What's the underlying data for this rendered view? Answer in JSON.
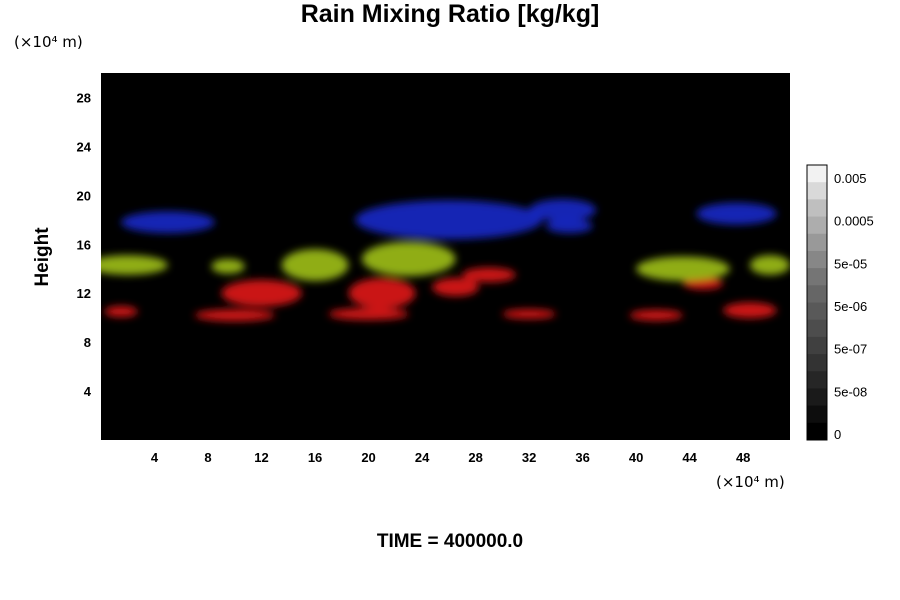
{
  "chart_data": {
    "type": "heatmap",
    "title": "Rain Mixing Ratio [kg/kg]",
    "ylabel": "Height",
    "xlabel": "",
    "x_unit": "(×10⁴ m)",
    "y_unit": "(×10⁴ m)",
    "xlim": [
      0,
      51.5
    ],
    "ylim": [
      0,
      30
    ],
    "x_ticks": [
      4,
      8,
      12,
      16,
      20,
      24,
      28,
      32,
      36,
      40,
      44,
      48
    ],
    "y_ticks": [
      4,
      8,
      12,
      16,
      20,
      24,
      28
    ],
    "grid": false,
    "background_color": "#000000",
    "layers": [
      {
        "color": "#e01818",
        "patches": [
          {
            "x": 1.5,
            "y": 10.5,
            "w": 2.5,
            "h": 0.9
          },
          {
            "x": 10.0,
            "y": 10.2,
            "w": 6.0,
            "h": 1.0
          },
          {
            "x": 20.0,
            "y": 10.3,
            "w": 6.0,
            "h": 1.0
          },
          {
            "x": 32.0,
            "y": 10.3,
            "w": 4.0,
            "h": 0.8
          },
          {
            "x": 41.5,
            "y": 10.2,
            "w": 4.0,
            "h": 0.9
          },
          {
            "x": 48.5,
            "y": 10.6,
            "w": 4.0,
            "h": 1.3
          },
          {
            "x": 12.0,
            "y": 12.0,
            "w": 6.0,
            "h": 2.2
          },
          {
            "x": 21.0,
            "y": 12.0,
            "w": 5.0,
            "h": 2.5
          },
          {
            "x": 26.5,
            "y": 12.5,
            "w": 3.5,
            "h": 1.5
          },
          {
            "x": 45.0,
            "y": 12.8,
            "w": 3.0,
            "h": 1.0
          },
          {
            "x": 29.0,
            "y": 13.5,
            "w": 4.0,
            "h": 1.2
          }
        ]
      },
      {
        "color": "#a0c018",
        "patches": [
          {
            "x": 2.0,
            "y": 14.3,
            "w": 6.0,
            "h": 1.6
          },
          {
            "x": 9.5,
            "y": 14.2,
            "w": 2.5,
            "h": 1.2
          },
          {
            "x": 16.0,
            "y": 14.3,
            "w": 5.0,
            "h": 2.6
          },
          {
            "x": 23.0,
            "y": 14.8,
            "w": 7.0,
            "h": 2.8
          },
          {
            "x": 43.5,
            "y": 14.0,
            "w": 7.0,
            "h": 2.0
          },
          {
            "x": 50.0,
            "y": 14.3,
            "w": 3.0,
            "h": 1.6
          }
        ]
      },
      {
        "color": "#1a28c8",
        "patches": [
          {
            "x": 5.0,
            "y": 17.8,
            "w": 7.0,
            "h": 1.8
          },
          {
            "x": 26.0,
            "y": 18.0,
            "w": 14.0,
            "h": 3.2
          },
          {
            "x": 34.5,
            "y": 18.8,
            "w": 5.0,
            "h": 1.8
          },
          {
            "x": 35.0,
            "y": 17.5,
            "w": 3.5,
            "h": 1.2
          },
          {
            "x": 47.5,
            "y": 18.5,
            "w": 6.0,
            "h": 1.8
          }
        ]
      }
    ],
    "colorbar": {
      "labels": [
        "0.005",
        "0.0005",
        "5e-05",
        "5e-06",
        "5e-07",
        "5e-08",
        "0"
      ],
      "levels_top_to_bottom": [
        0.95,
        0.85,
        0.75,
        0.68,
        0.6,
        0.53,
        0.46,
        0.4,
        0.35,
        0.3,
        0.25,
        0.2,
        0.15,
        0.1,
        0.05,
        0.0
      ]
    }
  },
  "footer": {
    "time_label": "TIME = 400000.0"
  }
}
